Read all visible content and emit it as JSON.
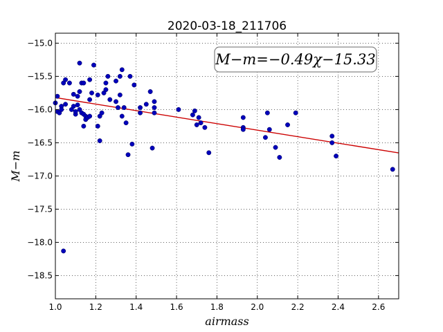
{
  "chart_data": {
    "type": "scatter",
    "title": "2020-03-18_211706",
    "xlabel": "airmass",
    "ylabel": "M−m",
    "xlim": [
      1.0,
      2.7
    ],
    "ylim": [
      -18.85,
      -14.85
    ],
    "y_inverted": true,
    "grid": true,
    "grid_style": "dotted",
    "xticks": [
      1.0,
      1.2,
      1.4,
      1.6,
      1.8,
      2.0,
      2.2,
      2.4,
      2.6
    ],
    "xtick_labels": [
      "1.0",
      "1.2",
      "1.4",
      "1.6",
      "1.8",
      "2.0",
      "2.2",
      "2.4",
      "2.6"
    ],
    "yticks": [
      -15.0,
      -15.5,
      -16.0,
      -16.5,
      -17.0,
      -17.5,
      -18.0,
      -18.5
    ],
    "ytick_labels": [
      "−15.0",
      "−15.5",
      "−16.0",
      "−16.5",
      "−17.0",
      "−17.5",
      "−18.0",
      "−18.5"
    ],
    "annotation": "M−m=−0.49χ−15.33",
    "fit": {
      "slope": -0.49,
      "intercept": -15.33,
      "color": "#cc0000"
    },
    "marker_color": "#0000bb",
    "points": [
      [
        1.0,
        -15.9
      ],
      [
        1.01,
        -16.03
      ],
      [
        1.01,
        -15.8
      ],
      [
        1.02,
        -16.05
      ],
      [
        1.03,
        -15.95
      ],
      [
        1.03,
        -16.0
      ],
      [
        1.04,
        -15.6
      ],
      [
        1.04,
        -18.13
      ],
      [
        1.05,
        -15.55
      ],
      [
        1.05,
        -15.92
      ],
      [
        1.07,
        -15.6
      ],
      [
        1.08,
        -16.0
      ],
      [
        1.09,
        -15.95
      ],
      [
        1.09,
        -15.77
      ],
      [
        1.1,
        -16.07
      ],
      [
        1.1,
        -16.03
      ],
      [
        1.11,
        -15.93
      ],
      [
        1.11,
        -15.8
      ],
      [
        1.12,
        -15.73
      ],
      [
        1.12,
        -16.0
      ],
      [
        1.12,
        -15.3
      ],
      [
        1.13,
        -15.6
      ],
      [
        1.13,
        -16.05
      ],
      [
        1.14,
        -15.6
      ],
      [
        1.14,
        -16.25
      ],
      [
        1.14,
        -16.07
      ],
      [
        1.15,
        -16.1
      ],
      [
        1.15,
        -16.15
      ],
      [
        1.16,
        -16.12
      ],
      [
        1.17,
        -15.55
      ],
      [
        1.17,
        -15.85
      ],
      [
        1.17,
        -16.1
      ],
      [
        1.18,
        -15.75
      ],
      [
        1.19,
        -15.33
      ],
      [
        1.21,
        -16.25
      ],
      [
        1.21,
        -15.78
      ],
      [
        1.22,
        -16.47
      ],
      [
        1.22,
        -16.1
      ],
      [
        1.23,
        -16.05
      ],
      [
        1.24,
        -15.75
      ],
      [
        1.25,
        -15.7
      ],
      [
        1.25,
        -15.6
      ],
      [
        1.26,
        -15.5
      ],
      [
        1.27,
        -15.85
      ],
      [
        1.3,
        -15.88
      ],
      [
        1.3,
        -15.57
      ],
      [
        1.31,
        -15.97
      ],
      [
        1.32,
        -15.78
      ],
      [
        1.32,
        -15.5
      ],
      [
        1.33,
        -15.4
      ],
      [
        1.33,
        -16.1
      ],
      [
        1.34,
        -15.97
      ],
      [
        1.35,
        -16.2
      ],
      [
        1.36,
        -16.68
      ],
      [
        1.37,
        -15.5
      ],
      [
        1.38,
        -16.52
      ],
      [
        1.39,
        -15.63
      ],
      [
        1.42,
        -15.97
      ],
      [
        1.42,
        -16.05
      ],
      [
        1.45,
        -15.92
      ],
      [
        1.47,
        -15.73
      ],
      [
        1.48,
        -16.58
      ],
      [
        1.49,
        -16.05
      ],
      [
        1.49,
        -15.88
      ],
      [
        1.49,
        -15.97
      ],
      [
        1.61,
        -16.0
      ],
      [
        1.68,
        -16.08
      ],
      [
        1.69,
        -16.02
      ],
      [
        1.7,
        -16.23
      ],
      [
        1.71,
        -16.12
      ],
      [
        1.72,
        -16.2
      ],
      [
        1.74,
        -16.27
      ],
      [
        1.76,
        -16.65
      ],
      [
        1.93,
        -16.12
      ],
      [
        1.93,
        -16.27
      ],
      [
        1.93,
        -16.3
      ],
      [
        2.04,
        -16.42
      ],
      [
        2.05,
        -16.05
      ],
      [
        2.06,
        -16.3
      ],
      [
        2.09,
        -16.57
      ],
      [
        2.11,
        -16.72
      ],
      [
        2.15,
        -16.23
      ],
      [
        2.19,
        -16.05
      ],
      [
        2.37,
        -16.4
      ],
      [
        2.37,
        -16.5
      ],
      [
        2.39,
        -16.7
      ],
      [
        2.67,
        -16.9
      ]
    ]
  }
}
